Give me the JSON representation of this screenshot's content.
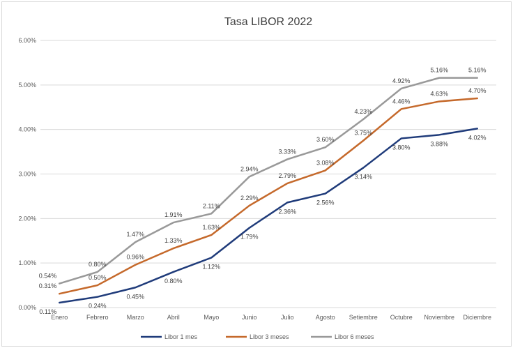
{
  "chart_data": {
    "type": "line",
    "title": "Tasa LIBOR 2022",
    "xlabel": "",
    "ylabel": "",
    "categories": [
      "Enero",
      "Febrero",
      "Marzo",
      "Abril",
      "Mayo",
      "Junio",
      "Julio",
      "Agosto",
      "Setiembre",
      "Octubre",
      "Noviembre",
      "Diciembre"
    ],
    "ylim": [
      0,
      6
    ],
    "yticks": [
      "0.00%",
      "1.00%",
      "2.00%",
      "3.00%",
      "4.00%",
      "5.00%",
      "6.00%"
    ],
    "grid": true,
    "legend_position": "bottom",
    "series": [
      {
        "name": "Libor 1 mes",
        "color": "#1f3b7a",
        "values": [
          0.11,
          0.24,
          0.45,
          0.8,
          1.12,
          1.79,
          2.36,
          2.56,
          3.14,
          3.8,
          3.88,
          4.02
        ],
        "labels": [
          "0.11%",
          "0.24%",
          "0.45%",
          "0.80%",
          "1.12%",
          "1.79%",
          "2.36%",
          "2.56%",
          "3.14%",
          "3.80%",
          "3.88%",
          "4.02%"
        ]
      },
      {
        "name": "Libor 3 meses",
        "color": "#c5692b",
        "values": [
          0.31,
          0.5,
          0.96,
          1.33,
          1.63,
          2.29,
          2.79,
          3.08,
          3.75,
          4.46,
          4.63,
          4.7
        ],
        "labels": [
          "0.31%",
          "0.50%",
          "0.96%",
          "1.33%",
          "1.63%",
          "2.29%",
          "2.79%",
          "3.08%",
          "3.75%",
          "4.46%",
          "4.63%",
          "4.70%"
        ]
      },
      {
        "name": "Libor 6 meses",
        "color": "#999999",
        "values": [
          0.54,
          0.8,
          1.47,
          1.91,
          2.11,
          2.94,
          3.33,
          3.6,
          4.23,
          4.92,
          5.16,
          5.16
        ],
        "labels": [
          "0.54%",
          "0.80%",
          "1.47%",
          "1.91%",
          "2.11%",
          "2.94%",
          "3.33%",
          "3.60%",
          "4.23%",
          "4.92%",
          "5.16%",
          "5.16%"
        ]
      }
    ]
  }
}
